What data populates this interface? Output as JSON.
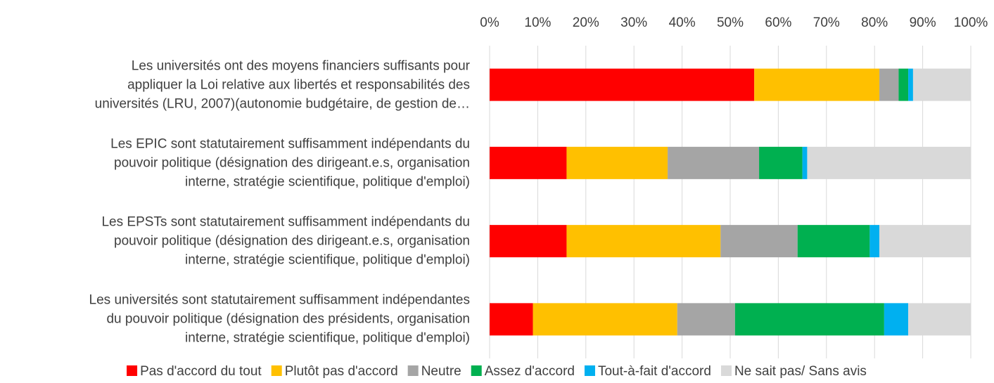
{
  "chart_data": {
    "type": "stacked_barh",
    "categories": [
      "Les universités ont des moyens financiers suffisants pour\nappliquer la Loi relative aux libertés et responsabilités des\nuniversités (LRU, 2007)(autonomie budgétaire, de gestion de…",
      "Les EPIC sont statutairement suffisamment indépendants du\npouvoir politique  (désignation des dirigeant.e.s, organisation\ninterne, stratégie scientifique, politique d'emploi)",
      "Les EPSTs sont statutairement suffisamment indépendants du\npouvoir politique  (désignation des dirigeant.e.s, organisation\ninterne, stratégie scientifique, politique d'emploi)",
      "Les universités sont statutairement suffisamment indépendantes\ndu pouvoir politique (désignation des présidents, organisation\ninterne, stratégie scientifique, politique d'emploi)"
    ],
    "series": [
      {
        "name": "Pas d'accord du tout",
        "color": "#ff0000",
        "values": [
          55,
          16,
          16,
          9
        ]
      },
      {
        "name": "Plutôt pas d'accord",
        "color": "#ffc000",
        "values": [
          26,
          21,
          32,
          30
        ]
      },
      {
        "name": "Neutre",
        "color": "#a5a5a5",
        "values": [
          4,
          19,
          16,
          12
        ]
      },
      {
        "name": "Assez d'accord",
        "color": "#00b050",
        "values": [
          2,
          9,
          15,
          31
        ]
      },
      {
        "name": "Tout-à-fait d'accord",
        "color": "#00b0f0",
        "values": [
          1,
          1,
          2,
          5
        ]
      },
      {
        "name": "Ne sait pas/ Sans avis",
        "color": "#d9d9d9",
        "values": [
          12,
          34,
          19,
          13
        ]
      }
    ],
    "xlim": [
      0,
      100
    ],
    "xticks": [
      {
        "value": 0,
        "label": "0%"
      },
      {
        "value": 10,
        "label": "10%"
      },
      {
        "value": 20,
        "label": "20%"
      },
      {
        "value": 30,
        "label": "30%"
      },
      {
        "value": 40,
        "label": "40%"
      },
      {
        "value": 50,
        "label": "50%"
      },
      {
        "value": 60,
        "label": "60%"
      },
      {
        "value": 70,
        "label": "70%"
      },
      {
        "value": 80,
        "label": "80%"
      },
      {
        "value": 90,
        "label": "90%"
      },
      {
        "value": 100,
        "label": "100%"
      }
    ],
    "grid": true,
    "legend": "bottom"
  }
}
